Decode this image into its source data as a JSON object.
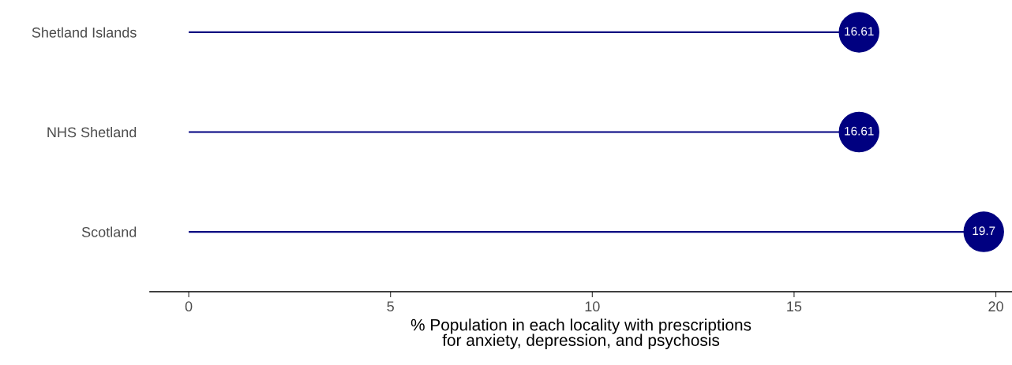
{
  "chart_data": {
    "type": "lollipop",
    "orientation": "horizontal",
    "categories": [
      "Shetland Islands",
      "NHS Shetland",
      "Scotland"
    ],
    "values": [
      16.61,
      16.61,
      19.7
    ],
    "color": "#000080",
    "xlim": [
      -0.96,
      20.4
    ],
    "xticks": [
      0,
      5,
      10,
      15,
      20
    ],
    "xlabel": "% Population in each locality with prescriptions\nfor anxiety, depression, and psychosis",
    "data_labels": true,
    "marker": "circle"
  }
}
